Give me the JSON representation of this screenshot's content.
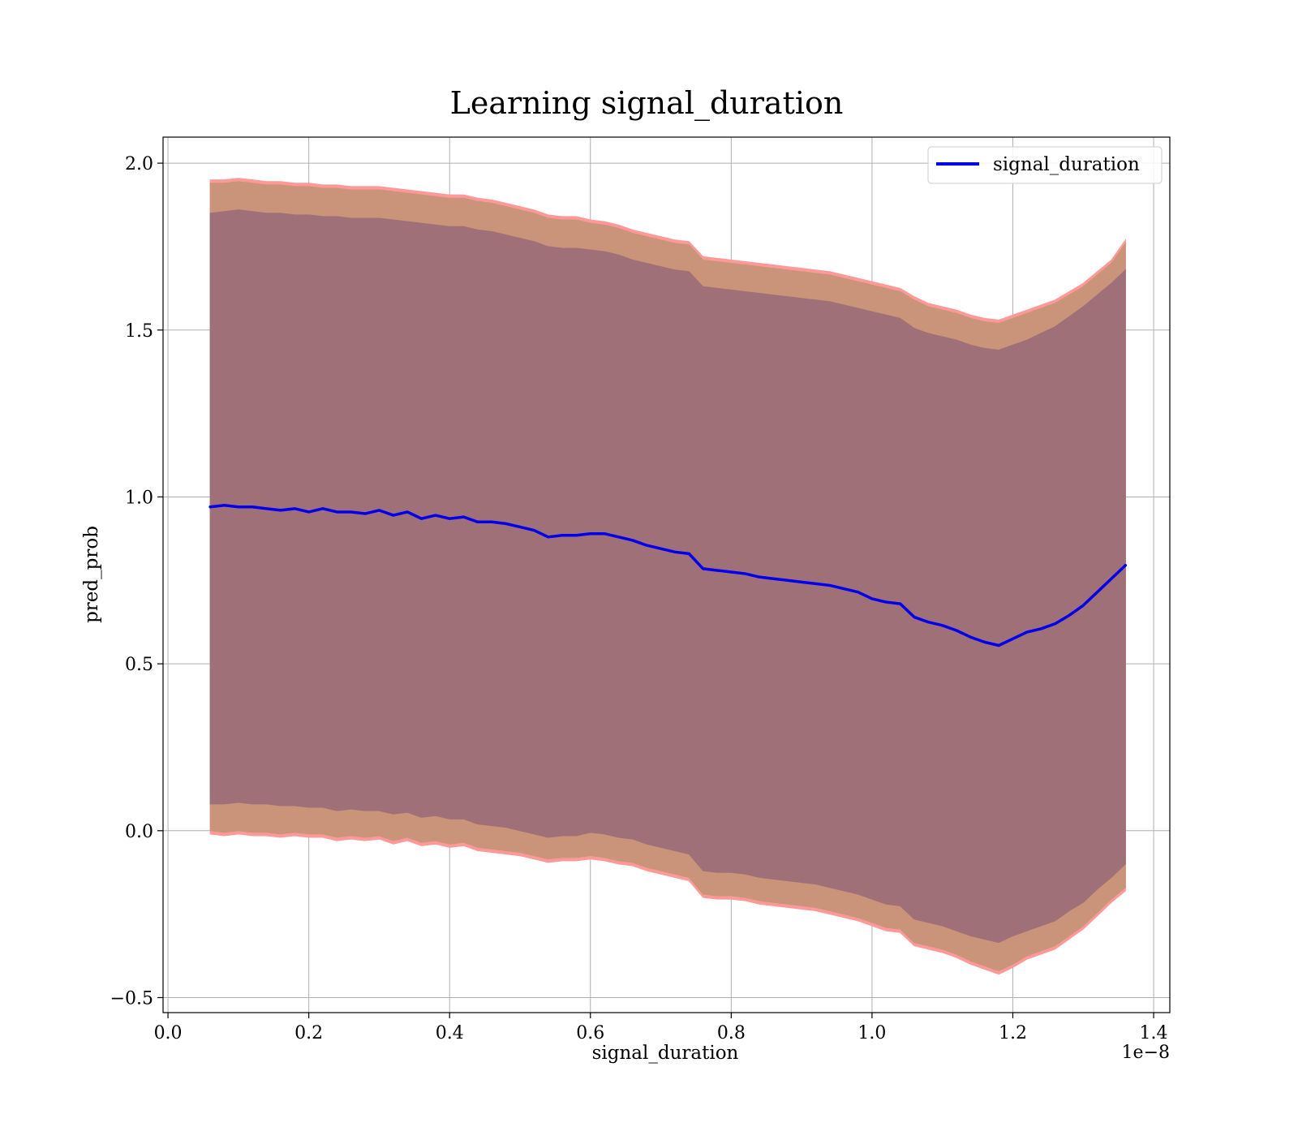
{
  "chart_data": {
    "type": "line",
    "title": "Learning signal_duration",
    "xlabel": "signal_duration",
    "ylabel": "pred_prob",
    "x_offset_label": "1e−8",
    "xlim": [
      -0.007,
      1.423
    ],
    "ylim": [
      -0.545,
      2.078
    ],
    "xticks": [
      0.0,
      0.2,
      0.4,
      0.6,
      0.8,
      1.0,
      1.2,
      1.4
    ],
    "xtick_labels": [
      "0.0",
      "0.2",
      "0.4",
      "0.6",
      "0.8",
      "1.0",
      "1.2",
      "1.4"
    ],
    "yticks": [
      -0.5,
      0.0,
      0.5,
      1.0,
      1.5,
      2.0
    ],
    "ytick_labels": [
      "−0.5",
      "0.0",
      "0.5",
      "1.0",
      "1.5",
      "2.0"
    ],
    "grid": true,
    "legend": {
      "position": "top-right",
      "entries": [
        "signal_duration"
      ]
    },
    "colors": {
      "line": "#0000ee",
      "outer_band": "#ff9999",
      "middle_band": "#c99479",
      "inner_band": "#a07078"
    },
    "x": [
      0.06,
      0.08,
      0.1,
      0.12,
      0.14,
      0.16,
      0.18,
      0.2,
      0.22,
      0.24,
      0.26,
      0.28,
      0.3,
      0.32,
      0.34,
      0.36,
      0.38,
      0.4,
      0.42,
      0.44,
      0.46,
      0.48,
      0.5,
      0.52,
      0.54,
      0.56,
      0.58,
      0.6,
      0.62,
      0.64,
      0.66,
      0.68,
      0.7,
      0.72,
      0.74,
      0.76,
      0.78,
      0.8,
      0.82,
      0.84,
      0.86,
      0.88,
      0.9,
      0.92,
      0.94,
      0.96,
      0.98,
      1.0,
      1.02,
      1.04,
      1.06,
      1.08,
      1.1,
      1.12,
      1.14,
      1.16,
      1.18,
      1.2,
      1.22,
      1.24,
      1.26,
      1.28,
      1.3,
      1.32,
      1.34,
      1.36
    ],
    "series": [
      {
        "name": "signal_duration",
        "values": [
          0.97,
          0.975,
          0.97,
          0.97,
          0.965,
          0.96,
          0.965,
          0.955,
          0.965,
          0.955,
          0.955,
          0.95,
          0.96,
          0.945,
          0.955,
          0.935,
          0.945,
          0.935,
          0.94,
          0.925,
          0.925,
          0.92,
          0.91,
          0.9,
          0.88,
          0.885,
          0.885,
          0.89,
          0.89,
          0.88,
          0.87,
          0.855,
          0.845,
          0.835,
          0.83,
          0.785,
          0.78,
          0.775,
          0.77,
          0.76,
          0.755,
          0.75,
          0.745,
          0.74,
          0.735,
          0.725,
          0.715,
          0.695,
          0.685,
          0.68,
          0.64,
          0.625,
          0.615,
          0.6,
          0.58,
          0.565,
          0.555,
          0.575,
          0.595,
          0.605,
          0.62,
          0.645,
          0.675,
          0.715,
          0.755,
          0.795
        ]
      }
    ],
    "bands": [
      {
        "lower": [
          -0.01,
          -0.015,
          -0.01,
          -0.015,
          -0.015,
          -0.02,
          -0.015,
          -0.02,
          -0.02,
          -0.03,
          -0.025,
          -0.03,
          -0.025,
          -0.04,
          -0.03,
          -0.045,
          -0.04,
          -0.05,
          -0.045,
          -0.06,
          -0.065,
          -0.07,
          -0.075,
          -0.085,
          -0.095,
          -0.09,
          -0.09,
          -0.085,
          -0.09,
          -0.1,
          -0.105,
          -0.12,
          -0.13,
          -0.14,
          -0.15,
          -0.2,
          -0.205,
          -0.205,
          -0.21,
          -0.22,
          -0.225,
          -0.23,
          -0.235,
          -0.24,
          -0.25,
          -0.26,
          -0.27,
          -0.285,
          -0.3,
          -0.305,
          -0.345,
          -0.355,
          -0.365,
          -0.38,
          -0.4,
          -0.415,
          -0.43,
          -0.41,
          -0.385,
          -0.37,
          -0.355,
          -0.325,
          -0.295,
          -0.255,
          -0.215,
          -0.18
        ],
        "upper": [
          1.95,
          1.95,
          1.955,
          1.95,
          1.945,
          1.945,
          1.94,
          1.94,
          1.935,
          1.935,
          1.93,
          1.93,
          1.93,
          1.925,
          1.92,
          1.915,
          1.91,
          1.905,
          1.905,
          1.895,
          1.89,
          1.88,
          1.87,
          1.86,
          1.845,
          1.84,
          1.84,
          1.83,
          1.825,
          1.815,
          1.8,
          1.79,
          1.78,
          1.77,
          1.765,
          1.72,
          1.715,
          1.71,
          1.705,
          1.7,
          1.695,
          1.69,
          1.685,
          1.68,
          1.675,
          1.665,
          1.655,
          1.645,
          1.635,
          1.625,
          1.6,
          1.58,
          1.57,
          1.56,
          1.545,
          1.535,
          1.53,
          1.545,
          1.56,
          1.575,
          1.59,
          1.615,
          1.64,
          1.675,
          1.71,
          1.77
        ]
      },
      {
        "lower": [
          0.0,
          -0.005,
          0.0,
          -0.005,
          -0.005,
          -0.01,
          -0.005,
          -0.01,
          -0.01,
          -0.02,
          -0.015,
          -0.02,
          -0.015,
          -0.03,
          -0.02,
          -0.035,
          -0.03,
          -0.04,
          -0.035,
          -0.05,
          -0.055,
          -0.06,
          -0.065,
          -0.075,
          -0.085,
          -0.08,
          -0.08,
          -0.075,
          -0.08,
          -0.09,
          -0.095,
          -0.11,
          -0.12,
          -0.13,
          -0.14,
          -0.19,
          -0.195,
          -0.195,
          -0.2,
          -0.21,
          -0.215,
          -0.22,
          -0.225,
          -0.23,
          -0.24,
          -0.25,
          -0.26,
          -0.275,
          -0.29,
          -0.295,
          -0.335,
          -0.345,
          -0.355,
          -0.37,
          -0.39,
          -0.405,
          -0.42,
          -0.4,
          -0.375,
          -0.36,
          -0.345,
          -0.315,
          -0.285,
          -0.245,
          -0.205,
          -0.17
        ],
        "upper": [
          1.94,
          1.94,
          1.945,
          1.94,
          1.935,
          1.935,
          1.93,
          1.93,
          1.925,
          1.925,
          1.92,
          1.92,
          1.92,
          1.915,
          1.91,
          1.905,
          1.9,
          1.895,
          1.895,
          1.885,
          1.88,
          1.87,
          1.86,
          1.85,
          1.835,
          1.83,
          1.83,
          1.82,
          1.815,
          1.805,
          1.79,
          1.78,
          1.77,
          1.76,
          1.755,
          1.71,
          1.705,
          1.7,
          1.695,
          1.69,
          1.685,
          1.68,
          1.675,
          1.67,
          1.665,
          1.655,
          1.645,
          1.635,
          1.625,
          1.615,
          1.59,
          1.57,
          1.56,
          1.55,
          1.535,
          1.525,
          1.52,
          1.535,
          1.55,
          1.565,
          1.58,
          1.605,
          1.63,
          1.665,
          1.7,
          1.76
        ]
      },
      {
        "lower": [
          0.08,
          0.08,
          0.085,
          0.08,
          0.08,
          0.075,
          0.075,
          0.07,
          0.07,
          0.06,
          0.065,
          0.06,
          0.06,
          0.05,
          0.055,
          0.04,
          0.045,
          0.035,
          0.035,
          0.02,
          0.015,
          0.01,
          0.0,
          -0.01,
          -0.02,
          -0.015,
          -0.015,
          -0.005,
          -0.01,
          -0.02,
          -0.025,
          -0.04,
          -0.05,
          -0.06,
          -0.07,
          -0.12,
          -0.125,
          -0.125,
          -0.13,
          -0.14,
          -0.145,
          -0.15,
          -0.155,
          -0.16,
          -0.17,
          -0.18,
          -0.19,
          -0.205,
          -0.22,
          -0.225,
          -0.265,
          -0.275,
          -0.285,
          -0.3,
          -0.315,
          -0.325,
          -0.335,
          -0.315,
          -0.3,
          -0.285,
          -0.27,
          -0.24,
          -0.215,
          -0.175,
          -0.14,
          -0.1
        ],
        "upper": [
          1.85,
          1.855,
          1.86,
          1.855,
          1.85,
          1.85,
          1.845,
          1.845,
          1.84,
          1.84,
          1.835,
          1.835,
          1.835,
          1.83,
          1.825,
          1.82,
          1.815,
          1.81,
          1.81,
          1.8,
          1.795,
          1.785,
          1.775,
          1.765,
          1.75,
          1.745,
          1.745,
          1.74,
          1.735,
          1.725,
          1.71,
          1.7,
          1.69,
          1.68,
          1.675,
          1.63,
          1.625,
          1.62,
          1.615,
          1.61,
          1.605,
          1.6,
          1.595,
          1.59,
          1.585,
          1.575,
          1.565,
          1.555,
          1.545,
          1.535,
          1.505,
          1.49,
          1.48,
          1.47,
          1.455,
          1.445,
          1.44,
          1.455,
          1.47,
          1.49,
          1.51,
          1.54,
          1.57,
          1.605,
          1.64,
          1.68
        ]
      }
    ]
  }
}
